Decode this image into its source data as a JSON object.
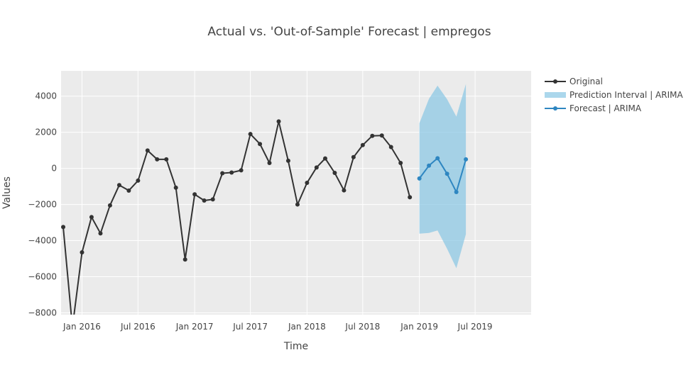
{
  "chart_data": {
    "type": "line",
    "title": "Actual vs. 'Out-of-Sample' Forecast | empregos",
    "xlabel": "Time",
    "ylabel": "Values",
    "ylim": [
      -8100,
      5400
    ],
    "xlim": [
      "2015-10-25",
      "2019-12-30"
    ],
    "y_ticks": [
      4000,
      2000,
      0,
      -2000,
      -4000,
      -6000,
      -8000
    ],
    "y_tick_labels": [
      "4000",
      "2000",
      "0",
      "−2000",
      "−4000",
      "−6000",
      "−8000"
    ],
    "x_ticks": [
      {
        "date": "2016-01-01",
        "label": "Jan 2016"
      },
      {
        "date": "2016-07-01",
        "label": "Jul 2016"
      },
      {
        "date": "2017-01-01",
        "label": "Jan 2017"
      },
      {
        "date": "2017-07-01",
        "label": "Jul 2017"
      },
      {
        "date": "2018-01-01",
        "label": "Jan 2018"
      },
      {
        "date": "2018-07-01",
        "label": "Jul 2018"
      },
      {
        "date": "2019-01-01",
        "label": "Jan 2019"
      },
      {
        "date": "2019-07-01",
        "label": "Jul 2019"
      }
    ],
    "grid": true,
    "legend_position": "top-right",
    "series": [
      {
        "name": "Original",
        "color": "#333333",
        "mode": "lines+markers",
        "points": [
          [
            "2015-11-01",
            -3250
          ],
          [
            "2015-12-01",
            -8800
          ],
          [
            "2016-01-01",
            -4650
          ],
          [
            "2016-02-01",
            -2700
          ],
          [
            "2016-03-01",
            -3600
          ],
          [
            "2016-04-01",
            -2050
          ],
          [
            "2016-05-01",
            -930
          ],
          [
            "2016-06-01",
            -1230
          ],
          [
            "2016-07-01",
            -680
          ],
          [
            "2016-08-01",
            990
          ],
          [
            "2016-09-01",
            500
          ],
          [
            "2016-10-01",
            500
          ],
          [
            "2016-11-01",
            -1070
          ],
          [
            "2016-12-01",
            -5050
          ],
          [
            "2017-01-01",
            -1440
          ],
          [
            "2017-02-01",
            -1780
          ],
          [
            "2017-03-01",
            -1720
          ],
          [
            "2017-04-01",
            -270
          ],
          [
            "2017-05-01",
            -230
          ],
          [
            "2017-06-01",
            -110
          ],
          [
            "2017-07-01",
            1900
          ],
          [
            "2017-08-01",
            1350
          ],
          [
            "2017-09-01",
            300
          ],
          [
            "2017-10-01",
            2600
          ],
          [
            "2017-11-01",
            420
          ],
          [
            "2017-12-01",
            -2000
          ],
          [
            "2018-01-01",
            -800
          ],
          [
            "2018-02-01",
            50
          ],
          [
            "2018-03-01",
            550
          ],
          [
            "2018-04-01",
            -250
          ],
          [
            "2018-05-01",
            -1220
          ],
          [
            "2018-06-01",
            620
          ],
          [
            "2018-07-01",
            1290
          ],
          [
            "2018-08-01",
            1800
          ],
          [
            "2018-09-01",
            1820
          ],
          [
            "2018-10-01",
            1180
          ],
          [
            "2018-11-01",
            300
          ],
          [
            "2018-12-01",
            -1600
          ]
        ]
      },
      {
        "name": "Prediction Interval | ARIMA",
        "color": "rgba(135,198,228,0.7)",
        "mode": "band",
        "points": [
          {
            "x": "2019-01-01",
            "lower": -3620,
            "upper": 2500
          },
          {
            "x": "2019-02-01",
            "lower": -3580,
            "upper": 3850
          },
          {
            "x": "2019-03-01",
            "lower": -3440,
            "upper": 4580
          },
          {
            "x": "2019-04-01",
            "lower": -4450,
            "upper": 3830
          },
          {
            "x": "2019-05-01",
            "lower": -5530,
            "upper": 2870
          },
          {
            "x": "2019-06-01",
            "lower": -3650,
            "upper": 4670
          }
        ]
      },
      {
        "name": "Forecast | ARIMA",
        "color": "#2e86c1",
        "mode": "lines+markers",
        "points": [
          [
            "2019-01-01",
            -560
          ],
          [
            "2019-02-01",
            150
          ],
          [
            "2019-03-01",
            560
          ],
          [
            "2019-04-01",
            -300
          ],
          [
            "2019-05-01",
            -1310
          ],
          [
            "2019-06-01",
            500
          ]
        ]
      }
    ]
  }
}
